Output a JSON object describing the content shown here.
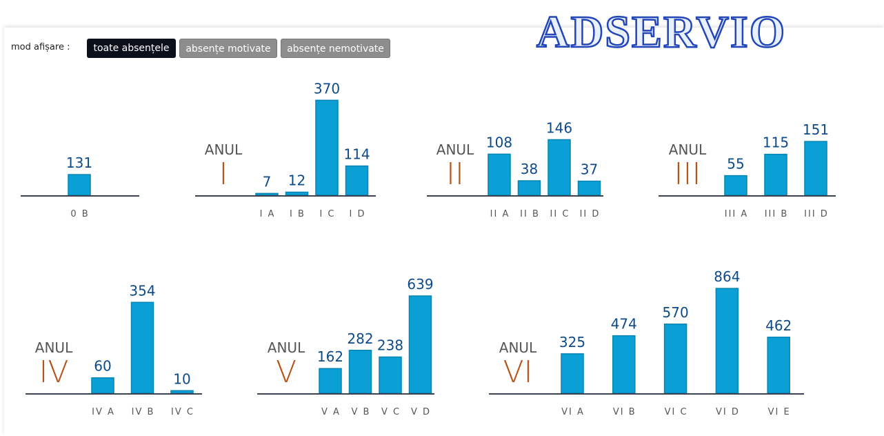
{
  "logo": "ADSERVIO",
  "mode_label": "mod afișare :",
  "buttons": [
    "toate absențele",
    "absențe motivate",
    "absențe nemotivate"
  ],
  "chart_data": [
    {
      "type": "bar",
      "categories": [
        "0 B"
      ],
      "values": [
        131
      ],
      "color": "#0aa0d6",
      "ylim": [
        0,
        700
      ]
    },
    {
      "type": "bar",
      "label": "ANUL",
      "numeral": "I",
      "categories": [
        "I A",
        "I B",
        "I C",
        "I D"
      ],
      "values": [
        7,
        12,
        370,
        114
      ],
      "color": "#0aa0d6",
      "ylim": [
        0,
        430
      ]
    },
    {
      "type": "bar",
      "label": "ANUL",
      "numeral": "II",
      "categories": [
        "II A",
        "II B",
        "II C",
        "II D"
      ],
      "values": [
        108,
        38,
        146,
        37
      ],
      "color": "#0aa0d6",
      "ylim": [
        0,
        290
      ]
    },
    {
      "type": "bar",
      "label": "ANUL",
      "numeral": "III",
      "categories": [
        "III A",
        "III B",
        "III D"
      ],
      "values": [
        55,
        115,
        151
      ],
      "color": "#0aa0d6",
      "ylim": [
        0,
        310
      ]
    },
    {
      "type": "bar",
      "label": "ANUL",
      "numeral": "IV",
      "categories": [
        "IV A",
        "IV B",
        "IV C"
      ],
      "values": [
        60,
        354,
        10
      ],
      "color": "#0aa0d6",
      "ylim": [
        0,
        430
      ]
    },
    {
      "type": "bar",
      "label": "ANUL",
      "numeral": "V",
      "categories": [
        "V A",
        "V B",
        "V C",
        "V D"
      ],
      "values": [
        162,
        282,
        238,
        639
      ],
      "color": "#0aa0d6",
      "ylim": [
        0,
        725
      ]
    },
    {
      "type": "bar",
      "label": "ANUL",
      "numeral": "VI",
      "categories": [
        "VI A",
        "VI B",
        "VI C",
        "VI D",
        "VI E"
      ],
      "values": [
        325,
        474,
        570,
        864,
        462
      ],
      "color": "#0aa0d6",
      "ylim": [
        0,
        910
      ]
    }
  ]
}
